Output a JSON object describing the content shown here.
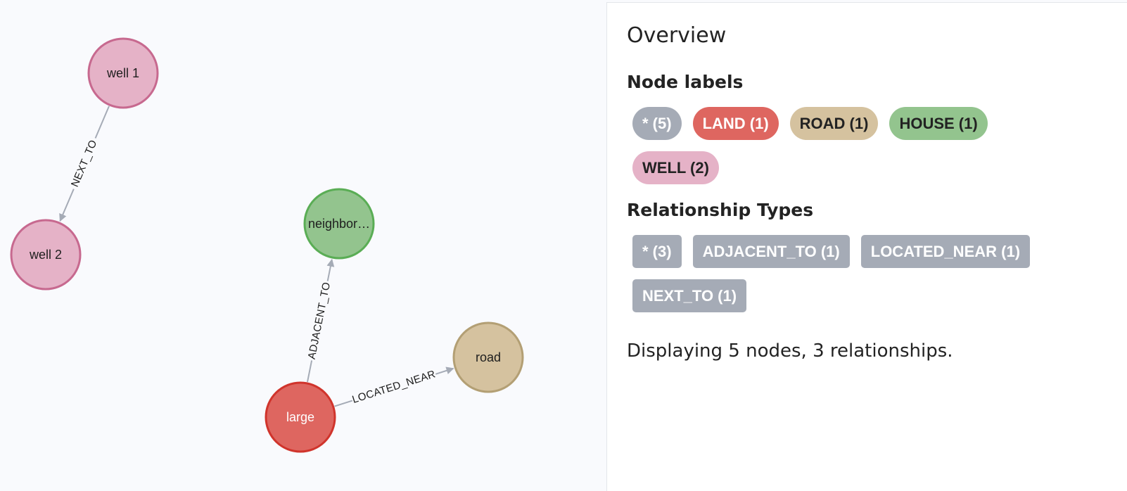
{
  "graph": {
    "nodes": [
      {
        "id": "well1",
        "label": "well 1",
        "fill": "#e5b2c7",
        "stroke": "#c7698f",
        "text_color": "#1e1e1e"
      },
      {
        "id": "well2",
        "label": "well 2",
        "fill": "#e5b2c7",
        "stroke": "#c7698f",
        "text_color": "#1e1e1e"
      },
      {
        "id": "neighbor",
        "label": "neighbor…",
        "fill": "#93c48e",
        "stroke": "#5aad55",
        "text_color": "#1e1e1e"
      },
      {
        "id": "large",
        "label": "large",
        "fill": "#de6660",
        "stroke": "#d0342c",
        "text_color": "#ffffff"
      },
      {
        "id": "road",
        "label": "road",
        "fill": "#d5c29f",
        "stroke": "#b39f74",
        "text_color": "#1e1e1e"
      }
    ],
    "relationships": [
      {
        "from": "well1",
        "to": "well2",
        "type": "NEXT_TO"
      },
      {
        "from": "large",
        "to": "neighbor",
        "type": "ADJACENT_TO"
      },
      {
        "from": "large",
        "to": "road",
        "type": "LOCATED_NEAR"
      }
    ],
    "edge_color": "#a5abb6"
  },
  "panel": {
    "title": "Overview",
    "node_labels_title": "Node labels",
    "node_labels": [
      {
        "text": "* (5)",
        "bg": "#a5abb6",
        "color": "#ffffff"
      },
      {
        "text": "LAND (1)",
        "bg": "#de6660",
        "color": "#ffffff"
      },
      {
        "text": "ROAD (1)",
        "bg": "#d5c29f",
        "color": "#222222"
      },
      {
        "text": "HOUSE (1)",
        "bg": "#93c48e",
        "color": "#222222"
      },
      {
        "text": "WELL (2)",
        "bg": "#e5b2c7",
        "color": "#222222"
      }
    ],
    "relationship_types_title": "Relationship Types",
    "relationship_types": [
      {
        "text": "* (3)",
        "bg": "#a5abb6",
        "color": "#ffffff"
      },
      {
        "text": "ADJACENT_TO (1)",
        "bg": "#a5abb6",
        "color": "#ffffff"
      },
      {
        "text": "LOCATED_NEAR (1)",
        "bg": "#a5abb6",
        "color": "#ffffff"
      },
      {
        "text": "NEXT_TO (1)",
        "bg": "#a5abb6",
        "color": "#ffffff"
      }
    ],
    "status": "Displaying 5 nodes, 3 relationships."
  }
}
